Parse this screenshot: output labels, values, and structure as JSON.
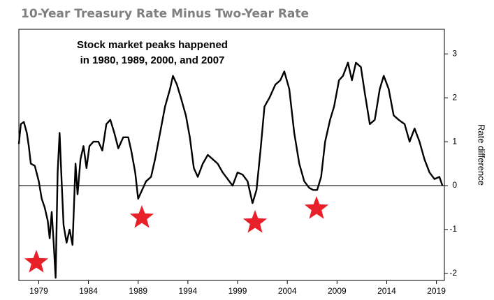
{
  "chart_data": {
    "type": "line",
    "title": "10-Year Treasury Rate Minus Two-Year Rate",
    "annotation": [
      "Stock market peaks happened",
      "in 1980, 1989, 2000, and 2007"
    ],
    "y_label": "Rate difference",
    "xlim": [
      1977,
      2019.8
    ],
    "xticks": [
      1979,
      1984,
      1989,
      1994,
      1999,
      2004,
      2009,
      2014,
      2019
    ],
    "ylim": [
      -2.16,
      3.56
    ],
    "yticks": [
      -2,
      -1,
      0,
      1,
      2,
      3
    ],
    "x": [
      1977.0,
      1977.2,
      1977.5,
      1977.8,
      1978.0,
      1978.2,
      1978.6,
      1979.0,
      1979.3,
      1979.6,
      1979.9,
      1980.1,
      1980.3,
      1980.5,
      1980.7,
      1980.9,
      1981.1,
      1981.3,
      1981.5,
      1981.8,
      1982.1,
      1982.4,
      1982.7,
      1982.9,
      1983.2,
      1983.5,
      1983.8,
      1984.1,
      1984.5,
      1985.0,
      1985.4,
      1985.8,
      1986.2,
      1986.6,
      1987.0,
      1987.5,
      1988.0,
      1988.3,
      1988.7,
      1989.0,
      1989.4,
      1989.8,
      1990.3,
      1990.7,
      1991.2,
      1991.7,
      1992.2,
      1992.5,
      1992.9,
      1993.3,
      1993.8,
      1994.2,
      1994.6,
      1995.0,
      1995.5,
      1996.0,
      1996.5,
      1997.0,
      1997.5,
      1998.0,
      1998.5,
      1999.0,
      1999.5,
      2000.0,
      2000.5,
      2000.9,
      2001.3,
      2001.7,
      2002.2,
      2002.8,
      2003.3,
      2003.7,
      2004.2,
      2004.7,
      2005.2,
      2005.7,
      2006.2,
      2006.6,
      2007.0,
      2007.4,
      2007.8,
      2008.3,
      2008.7,
      2009.2,
      2009.6,
      2010.1,
      2010.5,
      2010.9,
      2011.4,
      2011.8,
      2012.3,
      2012.8,
      2013.3,
      2013.7,
      2014.2,
      2014.7,
      2015.2,
      2015.8,
      2016.3,
      2016.8,
      2017.3,
      2017.8,
      2018.3,
      2018.8,
      2019.3,
      2019.6
    ],
    "series": [
      {
        "name": "Rate difference",
        "color": "#000000",
        "values": [
          0.95,
          1.4,
          1.45,
          1.2,
          0.9,
          0.5,
          0.45,
          0.1,
          -0.3,
          -0.5,
          -0.8,
          -1.2,
          -0.6,
          -1.3,
          -2.1,
          0.3,
          1.2,
          0.1,
          -0.9,
          -1.3,
          -1.0,
          -1.35,
          0.5,
          -0.2,
          0.6,
          0.9,
          0.4,
          0.9,
          1.0,
          1.0,
          0.8,
          1.4,
          1.5,
          1.2,
          0.85,
          1.1,
          1.1,
          0.8,
          0.3,
          -0.3,
          -0.1,
          0.1,
          0.2,
          0.6,
          1.2,
          1.8,
          2.2,
          2.5,
          2.3,
          2.0,
          1.6,
          1.1,
          0.4,
          0.2,
          0.5,
          0.7,
          0.6,
          0.5,
          0.3,
          0.15,
          0.0,
          0.3,
          0.25,
          0.1,
          -0.4,
          -0.1,
          0.8,
          1.8,
          2.0,
          2.3,
          2.4,
          2.6,
          2.2,
          1.2,
          0.5,
          0.1,
          -0.05,
          -0.1,
          -0.1,
          0.2,
          1.0,
          1.5,
          1.8,
          2.4,
          2.5,
          2.8,
          2.4,
          2.8,
          2.7,
          2.1,
          1.4,
          1.5,
          2.2,
          2.5,
          2.2,
          1.6,
          1.5,
          1.4,
          1.0,
          1.3,
          1.0,
          0.6,
          0.3,
          0.15,
          0.2,
          0.0
        ]
      }
    ]
  }
}
